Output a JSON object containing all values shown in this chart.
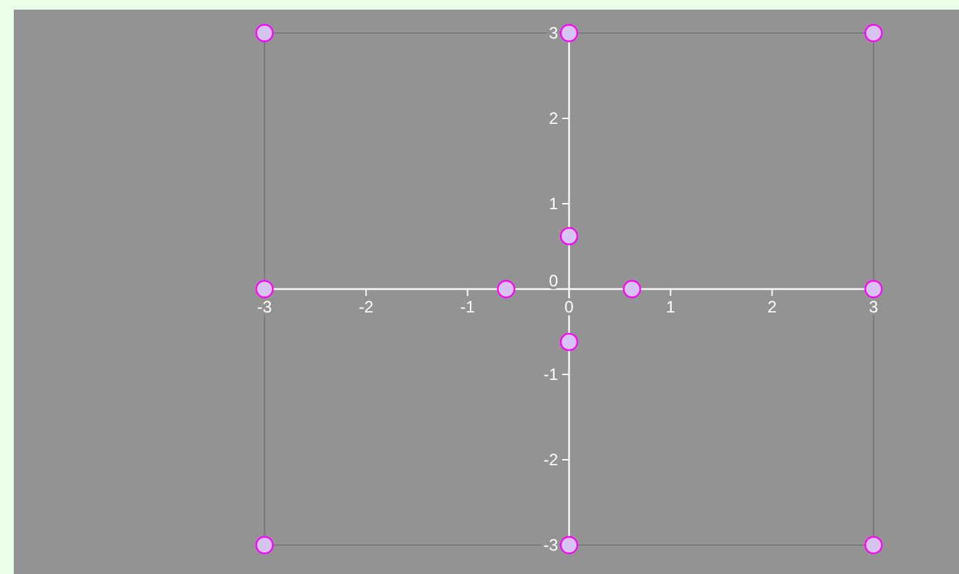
{
  "chart_data": {
    "type": "scatter",
    "x": [
      -3,
      0,
      3,
      0,
      -3,
      -0.62,
      0.62,
      3,
      0,
      -3,
      0,
      3
    ],
    "series": [
      {
        "color": "#d8c4f4",
        "values": [
          3,
          3,
          3,
          0.62,
          0,
          0,
          0,
          0,
          -0.62,
          -3,
          -3,
          -3
        ]
      }
    ],
    "xlim": [
      -3,
      3
    ],
    "ylim": [
      -3,
      3
    ],
    "xticks": [
      -3,
      -2,
      -1,
      0,
      1,
      2,
      3
    ],
    "yticks": [
      -3,
      -2,
      -1,
      0,
      1,
      2,
      3
    ],
    "marker": "circle"
  }
}
